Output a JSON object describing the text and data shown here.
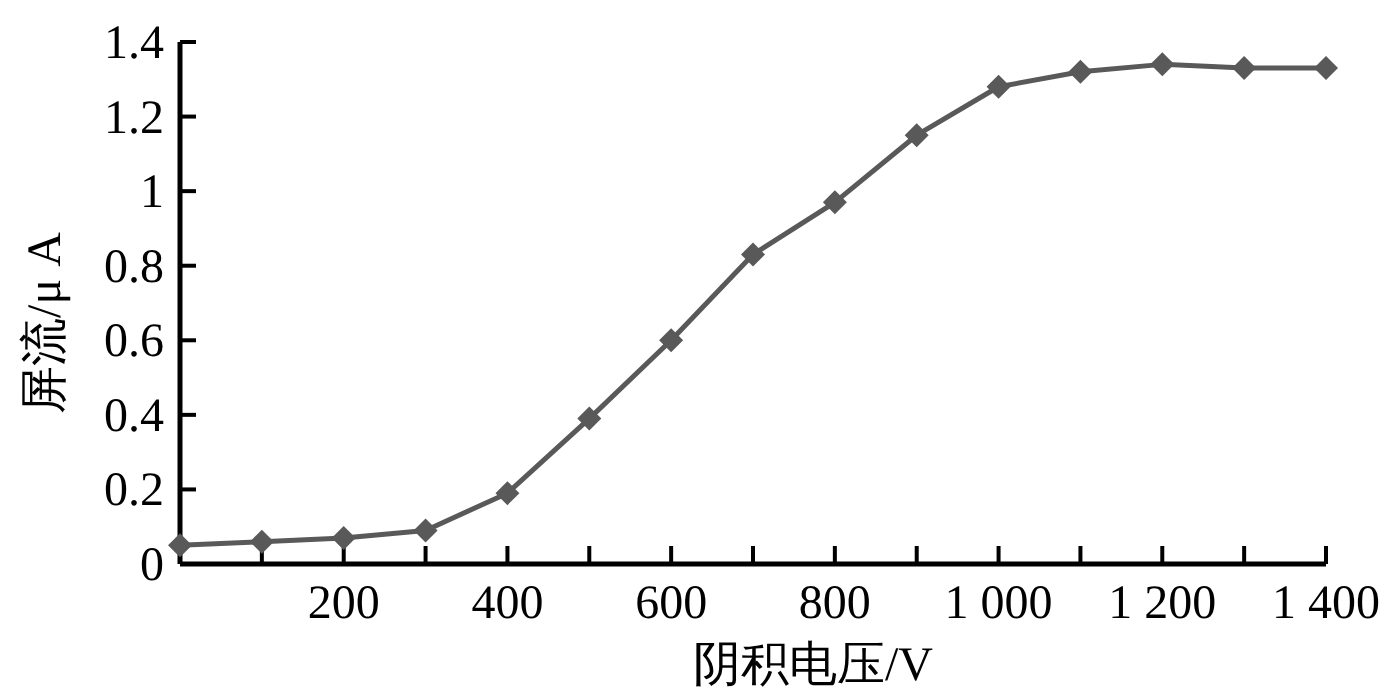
{
  "chart_data": {
    "type": "line",
    "xlabel": "阴积电压/V",
    "ylabel": "屏流/μ A",
    "x": [
      0,
      100,
      200,
      300,
      400,
      500,
      600,
      700,
      800,
      900,
      1000,
      1100,
      1200,
      1300,
      1400
    ],
    "series": [
      {
        "color": "#595959",
        "values": [
          0.05,
          0.06,
          0.07,
          0.09,
          0.19,
          0.39,
          0.6,
          0.83,
          0.97,
          1.15,
          1.28,
          1.32,
          1.34,
          1.33,
          1.33
        ]
      }
    ],
    "xlim": [
      0,
      1400
    ],
    "xticks": [
      {
        "value": 100,
        "label": null
      },
      200,
      {
        "value": 300,
        "label": null
      },
      400,
      {
        "value": 500,
        "label": null
      },
      600,
      {
        "value": 700,
        "label": null
      },
      800,
      {
        "value": 900,
        "label": null
      },
      {
        "value": 1000,
        "label": "1 000"
      },
      {
        "value": 1100,
        "label": null
      },
      {
        "value": 1200,
        "label": "1 200"
      },
      {
        "value": 1300,
        "label": null
      },
      {
        "value": 1400,
        "label": "1 400"
      }
    ],
    "ylim": [
      0,
      1.4
    ],
    "yticks": [
      0,
      0.2,
      0.4,
      0.6,
      0.8,
      1,
      1.2,
      1.4
    ],
    "marker": "diamond",
    "line_style": "solid"
  }
}
